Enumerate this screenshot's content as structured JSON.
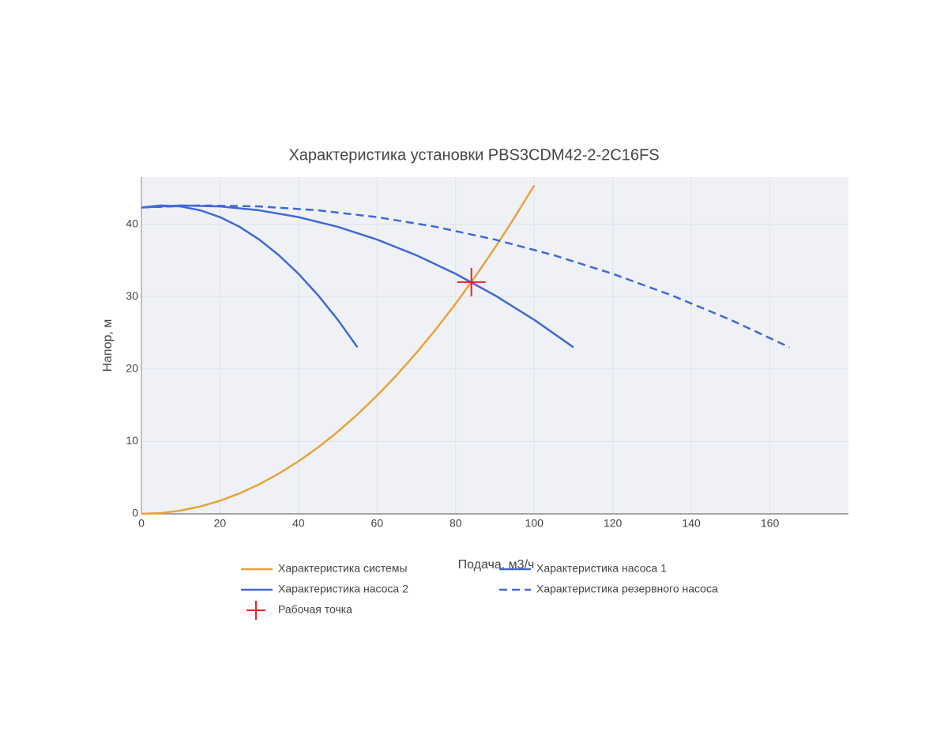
{
  "chart_data": {
    "type": "line",
    "title": "Характеристика установки PBS3CDM42-2-2C16FS",
    "x_label": "Подача, м3/ч",
    "y_label": "Напор, м",
    "xlim": [
      0,
      180
    ],
    "xticks": [
      0,
      20,
      40,
      60,
      80,
      100,
      120,
      140,
      160
    ],
    "ylim": [
      0,
      46.5
    ],
    "yticks": [
      0,
      10,
      20,
      30,
      40
    ],
    "grid": true,
    "series": [
      {
        "name": "Характеристика системы",
        "color": "#e5a43a",
        "dash": false,
        "x": [
          0,
          5,
          10,
          15,
          20,
          25,
          30,
          35,
          40,
          45,
          50,
          55,
          60,
          65,
          70,
          75,
          80,
          85,
          90,
          95,
          100
        ],
        "values": [
          0,
          0.11,
          0.45,
          1.02,
          1.81,
          2.83,
          4.08,
          5.56,
          7.26,
          9.18,
          11.34,
          13.72,
          16.33,
          19.16,
          22.22,
          25.51,
          29.02,
          32.77,
          36.74,
          40.93,
          45.35
        ]
      },
      {
        "name": "Характеристика насоса 1",
        "color": "#4169d6",
        "dash": false,
        "x": [
          0,
          5,
          10,
          15,
          20,
          25,
          30,
          35,
          40,
          45,
          50,
          55
        ],
        "values": [
          42.3,
          42.58,
          42.45,
          41.91,
          40.97,
          39.63,
          37.87,
          35.71,
          33.14,
          30.17,
          26.79,
          23
        ]
      },
      {
        "name": "Характеристика насоса 2",
        "color": "#4169d6",
        "dash": false,
        "x": [
          0,
          10,
          20,
          30,
          40,
          50,
          60,
          70,
          80,
          90,
          100,
          110
        ],
        "values": [
          42.3,
          42.58,
          42.45,
          41.91,
          40.97,
          39.63,
          37.87,
          35.71,
          33.14,
          30.17,
          26.79,
          23
        ]
      },
      {
        "name": "Характеристика резервного насоса",
        "color": "#4169d6",
        "dash": true,
        "x": [
          0,
          15,
          30,
          45,
          60,
          75,
          90,
          105,
          120,
          135,
          150,
          165
        ],
        "values": [
          42.3,
          42.58,
          42.45,
          41.91,
          40.97,
          39.63,
          37.87,
          35.71,
          33.14,
          30.17,
          26.79,
          23
        ]
      },
      {
        "name": "Рабочая точка",
        "color": "#e8202a",
        "mode": "markers",
        "x": [
          84
        ],
        "values": [
          32
        ]
      }
    ]
  }
}
